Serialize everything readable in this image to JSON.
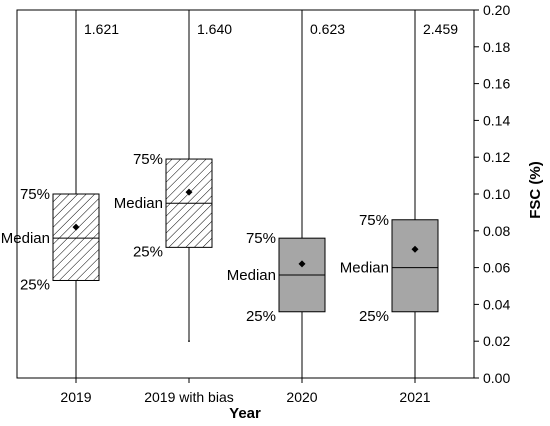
{
  "chart_data": {
    "type": "box",
    "xlabel": "Year",
    "ylabel": "FSC (%)",
    "ylim": [
      0,
      0.2
    ],
    "yticks": [
      "0.00",
      "0.02",
      "0.04",
      "0.06",
      "0.08",
      "0.10",
      "0.12",
      "0.14",
      "0.16",
      "0.18",
      "0.20"
    ],
    "y_axis_side": "right",
    "annotation_labels": {
      "q3": "75%",
      "median": "Median",
      "q1": "25%"
    },
    "series": [
      {
        "category": "2019",
        "min": 0.0,
        "q1": 0.053,
        "median": 0.076,
        "q3": 0.1,
        "mean": 0.082,
        "max_label": "1.621",
        "fill": "hatched"
      },
      {
        "category": "2019 with bias",
        "min": 0.02,
        "q1": 0.071,
        "median": 0.095,
        "q3": 0.119,
        "mean": 0.101,
        "max_label": "1.640",
        "fill": "hatched"
      },
      {
        "category": "2020",
        "min": 0.0,
        "q1": 0.036,
        "median": 0.056,
        "q3": 0.076,
        "mean": 0.062,
        "max_label": "0.623",
        "fill": "#a6a6a6"
      },
      {
        "category": "2021",
        "min": 0.0,
        "q1": 0.036,
        "median": 0.06,
        "q3": 0.086,
        "mean": 0.07,
        "max_label": "2.459",
        "fill": "#a6a6a6"
      }
    ]
  }
}
